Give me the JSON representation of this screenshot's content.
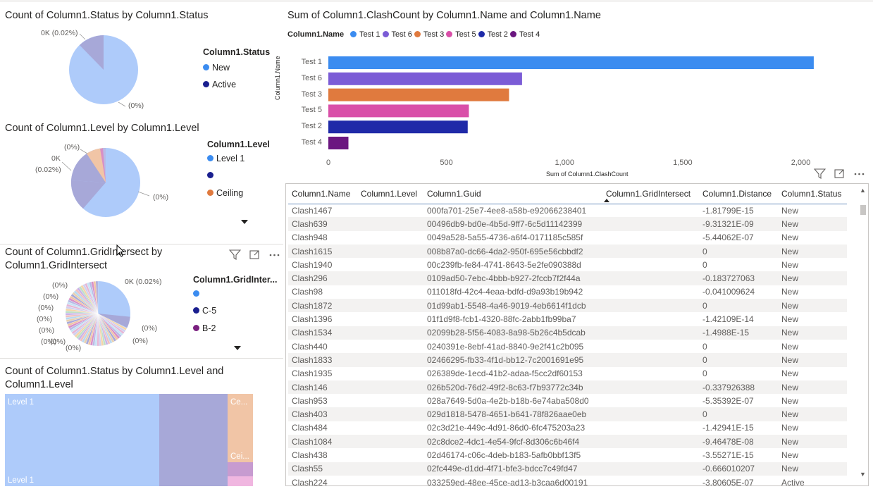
{
  "pie1": {
    "title": "Count of Column1.Status by Column1.Status",
    "legend_title": "Column1.Status",
    "legend": [
      {
        "label": "New",
        "color": "#3b8cf0"
      },
      {
        "label": "Active",
        "color": "#1a1f8f"
      }
    ],
    "label_top": "0K (0.02%)",
    "label_bottom": "(0%)"
  },
  "pie2": {
    "title": "Count of Column1.Level by Column1.Level",
    "legend_title": "Column1.Level",
    "legend": [
      {
        "label": "Level 1",
        "color": "#3b8cf0"
      },
      {
        "label": "",
        "color": "#1a1f8f"
      },
      {
        "label": "Ceiling",
        "color": "#e07a3e"
      }
    ],
    "label_a": "(0%)",
    "label_b": "0K",
    "label_c": "(0.02%)",
    "label_right": "(0%)"
  },
  "pie3": {
    "title_line1": "Count of Column1.GridIntersect by",
    "title_line2": "Column1.GridIntersect",
    "legend_title": "Column1.GridInter...",
    "legend": [
      {
        "label": "",
        "color": "#3b8cf0"
      },
      {
        "label": "C-5",
        "color": "#1a1f8f"
      },
      {
        "label": "B-2",
        "color": "#7a1f7f"
      }
    ],
    "label_top": "0K (0.02%)",
    "small_labels": [
      "(0%)",
      "(0%)",
      "(0%)",
      "(0%)",
      "(0%)",
      "(0%)",
      "(0%)",
      "(0%)",
      "(0%)",
      "(0%)"
    ]
  },
  "treemap": {
    "title_line1": "Count of Column1.Status by Column1.Level and",
    "title_line2": "Column1.Level",
    "labels": [
      "Level 1",
      "Level 1",
      "Ce...",
      "Cei..."
    ]
  },
  "barchart": {
    "title": "Sum of Column1.ClashCount by Column1.Name and Column1.Name",
    "legend_title": "Column1.Name",
    "xlabel": "Sum of Column1.ClashCount",
    "ylabel": "Column1.Name",
    "x_ticks": [
      "0",
      "500",
      "1,000",
      "1,500",
      "2,000"
    ]
  },
  "chart_data": {
    "type": "bar",
    "orientation": "horizontal",
    "title": "Sum of Column1.ClashCount by Column1.Name and Column1.Name",
    "xlabel": "Sum of Column1.ClashCount",
    "ylabel": "Column1.Name",
    "categories": [
      "Test 1",
      "Test 6",
      "Test 3",
      "Test 5",
      "Test 2",
      "Test 4"
    ],
    "values": [
      2055,
      820,
      765,
      595,
      590,
      85
    ],
    "colors": [
      "#3b8cf0",
      "#7b5cd6",
      "#e07a3e",
      "#d94fa8",
      "#1f2aa8",
      "#6b1780"
    ],
    "xlim": [
      0,
      2100
    ],
    "legend_order": [
      "Test 1",
      "Test 6",
      "Test 3",
      "Test 5",
      "Test 2",
      "Test 4"
    ],
    "grid": false
  },
  "table": {
    "columns": [
      "Column1.Name",
      "Column1.Level",
      "Column1.Guid",
      "Column1.GridIntersect",
      "Column1.Distance",
      "Column1.Status"
    ],
    "rows": [
      [
        "Clash1467",
        "",
        "000fa701-25e7-4ee8-a58b-e92066238401",
        "",
        "-1.81799E-15",
        "New"
      ],
      [
        "Clash639",
        "",
        "00496db9-bd0e-4b5d-9ff7-6c5d11142399",
        "",
        "-9.31321E-09",
        "New"
      ],
      [
        "Clash948",
        "",
        "0049a528-5a55-4736-a6f4-0171185c585f",
        "",
        "-5.44062E-07",
        "New"
      ],
      [
        "Clash1615",
        "",
        "008b87a0-dc66-4da2-950f-695e56cbbdf2",
        "",
        "0",
        "New"
      ],
      [
        "Clash1940",
        "",
        "00c239fb-fe84-4741-8643-5e2fe090388d",
        "",
        "0",
        "New"
      ],
      [
        "Clash296",
        "",
        "0109ad50-7ebc-4bbb-b927-2fccb7f2f44a",
        "",
        "-0.183727063",
        "New"
      ],
      [
        "Clash98",
        "",
        "011018fd-42c4-4eaa-bdfd-d9a93b19b942",
        "",
        "-0.041009624",
        "New"
      ],
      [
        "Clash1872",
        "",
        "01d99ab1-5548-4a46-9019-4eb6614f1dcb",
        "",
        "0",
        "New"
      ],
      [
        "Clash1396",
        "",
        "01f1d9f8-fcb1-4320-88fc-2abb1fb99ba7",
        "",
        "-1.42109E-14",
        "New"
      ],
      [
        "Clash1534",
        "",
        "02099b28-5f56-4083-8a98-5b26c4b5dcab",
        "",
        "-1.4988E-15",
        "New"
      ],
      [
        "Clash440",
        "",
        "0240391e-8ebf-41ad-8840-9e2f41c2b095",
        "",
        "0",
        "New"
      ],
      [
        "Clash1833",
        "",
        "02466295-fb33-4f1d-bb12-7c2001691e95",
        "",
        "0",
        "New"
      ],
      [
        "Clash1935",
        "",
        "026389de-1ecd-41b2-adaa-f5cc2df60153",
        "",
        "0",
        "New"
      ],
      [
        "Clash146",
        "",
        "026b520d-76d2-49f2-8c63-f7b93772c34b",
        "",
        "-0.337926388",
        "New"
      ],
      [
        "Clash953",
        "",
        "028a7649-5d0a-4e2b-b18b-6e74aba508d0",
        "",
        "-5.35392E-07",
        "New"
      ],
      [
        "Clash403",
        "",
        "029d1818-5478-4651-b641-78f826aae0eb",
        "",
        "0",
        "New"
      ],
      [
        "Clash484",
        "",
        "02c3d21e-449c-4d91-86d0-6fc475203a23",
        "",
        "-1.42941E-15",
        "New"
      ],
      [
        "Clash1084",
        "",
        "02c8dce2-4dc1-4e54-9fcf-8d306c6b46f4",
        "",
        "-9.46478E-08",
        "New"
      ],
      [
        "Clash438",
        "",
        "02d46174-c06c-4deb-b183-5afb0bbf13f5",
        "",
        "-3.55271E-15",
        "New"
      ],
      [
        "Clash55",
        "",
        "02fc449e-d1dd-4f71-bfe3-bdcc7c49fd47",
        "",
        "-0.666010207",
        "New"
      ],
      [
        "Clash224",
        "",
        "033259ed-48ee-45ce-ad13-b3caa6d00191",
        "",
        "-3.80605E-07",
        "Active"
      ]
    ]
  }
}
